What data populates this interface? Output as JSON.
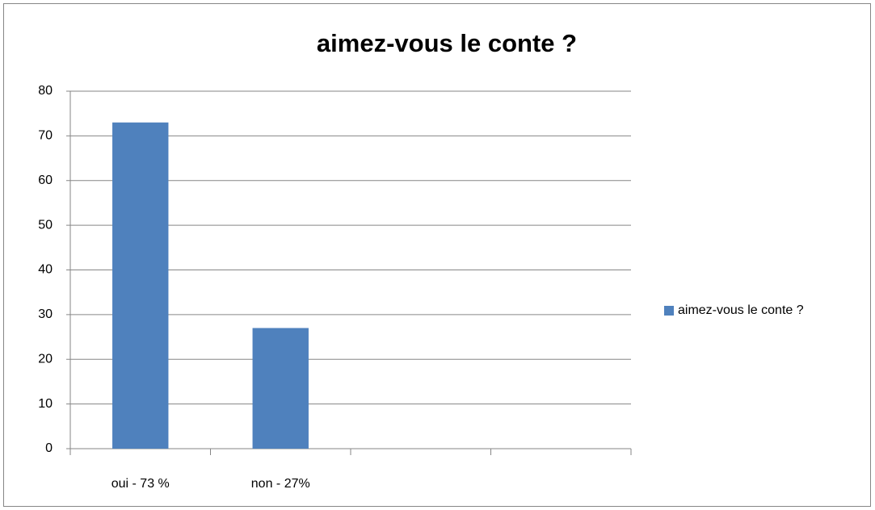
{
  "chart_data": {
    "type": "bar",
    "title": "aimez-vous le conte ?",
    "categories": [
      "oui - 73 %",
      "non - 27%",
      null,
      null
    ],
    "series": [
      {
        "name": "aimez-vous le conte ?",
        "color": "#4f81bd",
        "values": [
          73,
          27,
          null,
          null
        ]
      }
    ],
    "ylim": [
      0,
      80
    ],
    "yticks": [
      0,
      10,
      20,
      30,
      40,
      50,
      60,
      70,
      80
    ],
    "grid": true,
    "legend": "right"
  }
}
